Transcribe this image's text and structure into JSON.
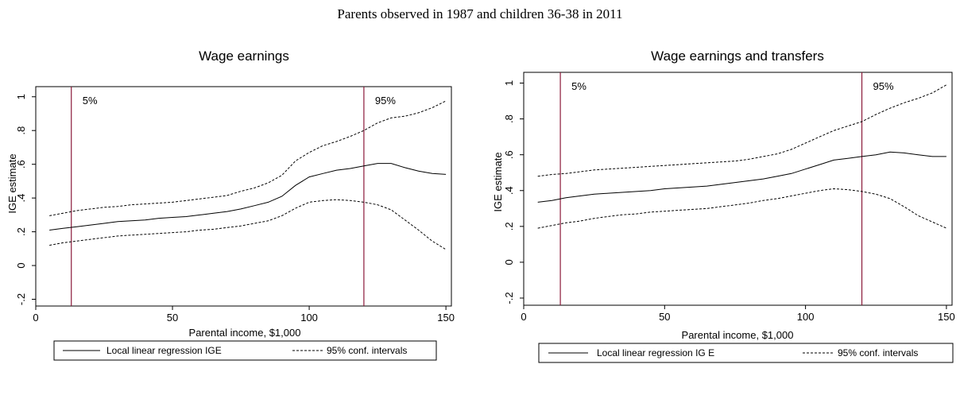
{
  "page_title": "Parents observed in 1987 and children 36-38 in 2011",
  "colors": {
    "vline": "#8b1a3a",
    "line": "#000000",
    "frame": "#000000"
  },
  "chart_data": [
    {
      "type": "line",
      "title": "Wage earnings",
      "xlabel": "Parental income, $1,000",
      "ylabel": "IGE estimate",
      "xlim": [
        0,
        152
      ],
      "ylim": [
        -0.24,
        1.06
      ],
      "xticks": [
        0,
        50,
        100,
        150
      ],
      "xtick_labels": [
        "0",
        "50",
        "100",
        "150"
      ],
      "yticks": [
        -0.2,
        0,
        0.2,
        0.4,
        0.6,
        0.8,
        1
      ],
      "ytick_labels": [
        "-.2",
        "0",
        ".2",
        ".4",
        ".6",
        ".8",
        "1"
      ],
      "vlines": [
        {
          "x": 13,
          "label": "5%"
        },
        {
          "x": 120,
          "label": "95%"
        }
      ],
      "legend": {
        "position": "bottom",
        "entries": [
          "Local linear regression IGE",
          "95% conf. intervals"
        ]
      },
      "x": [
        5,
        10,
        15,
        20,
        25,
        30,
        35,
        40,
        45,
        50,
        55,
        60,
        65,
        70,
        75,
        80,
        85,
        90,
        95,
        100,
        105,
        110,
        115,
        120,
        125,
        130,
        135,
        140,
        145,
        150
      ],
      "series": [
        {
          "style": "solid",
          "values": [
            0.21,
            0.22,
            0.23,
            0.24,
            0.25,
            0.26,
            0.265,
            0.27,
            0.28,
            0.285,
            0.29,
            0.3,
            0.31,
            0.32,
            0.335,
            0.355,
            0.375,
            0.41,
            0.475,
            0.525,
            0.545,
            0.565,
            0.575,
            0.59,
            0.605,
            0.605,
            0.58,
            0.56,
            0.545,
            0.54
          ]
        },
        {
          "style": "dashed",
          "values": [
            0.295,
            0.31,
            0.325,
            0.335,
            0.345,
            0.35,
            0.36,
            0.365,
            0.37,
            0.375,
            0.385,
            0.395,
            0.405,
            0.415,
            0.44,
            0.46,
            0.49,
            0.535,
            0.62,
            0.67,
            0.71,
            0.735,
            0.765,
            0.8,
            0.845,
            0.875,
            0.885,
            0.905,
            0.935,
            0.975
          ]
        },
        {
          "style": "dashed",
          "values": [
            0.12,
            0.135,
            0.145,
            0.155,
            0.165,
            0.175,
            0.18,
            0.185,
            0.19,
            0.195,
            0.2,
            0.21,
            0.215,
            0.225,
            0.235,
            0.25,
            0.265,
            0.295,
            0.34,
            0.375,
            0.385,
            0.39,
            0.385,
            0.375,
            0.36,
            0.33,
            0.27,
            0.21,
            0.145,
            0.095
          ]
        }
      ]
    },
    {
      "type": "line",
      "title": "Wage earnings and transfers",
      "xlabel": "Parental income, $1,000",
      "ylabel": "IGE estimate",
      "xlim": [
        0,
        152
      ],
      "ylim": [
        -0.24,
        1.06
      ],
      "xticks": [
        0,
        50,
        100,
        150
      ],
      "xtick_labels": [
        "0",
        "50",
        "100",
        "150"
      ],
      "yticks": [
        -0.2,
        0,
        0.2,
        0.4,
        0.6,
        0.8,
        1
      ],
      "ytick_labels": [
        "-.2",
        "0",
        ".2",
        ".4",
        ".6",
        ".8",
        "1"
      ],
      "vlines": [
        {
          "x": 13,
          "label": "5%"
        },
        {
          "x": 120,
          "label": "95%"
        }
      ],
      "legend": {
        "position": "bottom",
        "entries": [
          "Local linear regression IG  E",
          "95% conf. intervals"
        ]
      },
      "x": [
        5,
        10,
        15,
        20,
        25,
        30,
        35,
        40,
        45,
        50,
        55,
        60,
        65,
        70,
        75,
        80,
        85,
        90,
        95,
        100,
        105,
        110,
        115,
        120,
        125,
        130,
        135,
        140,
        145,
        150
      ],
      "series": [
        {
          "style": "solid",
          "values": [
            0.335,
            0.345,
            0.36,
            0.37,
            0.38,
            0.385,
            0.39,
            0.395,
            0.4,
            0.41,
            0.415,
            0.42,
            0.425,
            0.435,
            0.445,
            0.455,
            0.465,
            0.48,
            0.495,
            0.52,
            0.545,
            0.57,
            0.58,
            0.59,
            0.6,
            0.615,
            0.61,
            0.6,
            0.59,
            0.59
          ]
        },
        {
          "style": "dashed",
          "values": [
            0.48,
            0.49,
            0.495,
            0.505,
            0.515,
            0.52,
            0.525,
            0.53,
            0.535,
            0.54,
            0.545,
            0.55,
            0.555,
            0.56,
            0.565,
            0.575,
            0.59,
            0.605,
            0.63,
            0.665,
            0.7,
            0.735,
            0.76,
            0.785,
            0.825,
            0.86,
            0.89,
            0.915,
            0.945,
            0.99
          ]
        },
        {
          "style": "dashed",
          "values": [
            0.19,
            0.205,
            0.22,
            0.23,
            0.245,
            0.255,
            0.265,
            0.27,
            0.28,
            0.285,
            0.29,
            0.295,
            0.3,
            0.31,
            0.32,
            0.33,
            0.345,
            0.355,
            0.37,
            0.385,
            0.4,
            0.41,
            0.405,
            0.395,
            0.38,
            0.355,
            0.31,
            0.26,
            0.225,
            0.19
          ]
        }
      ]
    }
  ]
}
